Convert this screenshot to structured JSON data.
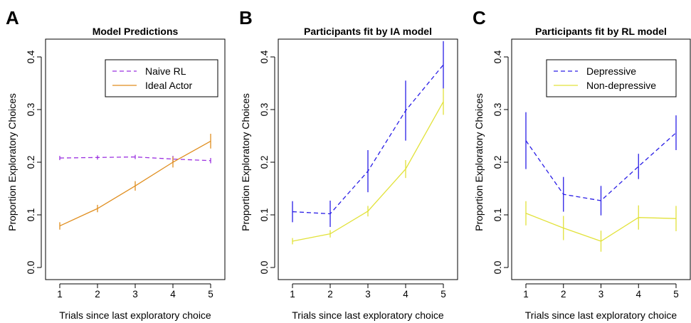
{
  "chart_data": [
    {
      "panel_letter": "A",
      "type": "line",
      "title": "Model Predictions",
      "xlabel": "Trials since last exploratory choice",
      "ylabel": "Proportion Exploratory Choices",
      "x": [
        1,
        2,
        3,
        4,
        5
      ],
      "xticks": [
        "1",
        "2",
        "3",
        "4",
        "5"
      ],
      "ylim": [
        0.0,
        0.4
      ],
      "yticks": [
        "0.0",
        "0.1",
        "0.2",
        "0.3",
        "0.4"
      ],
      "legend": "top-right",
      "series": [
        {
          "name": "Naive RL",
          "color": "#9b30e0",
          "dash": "dashed",
          "values": [
            0.208,
            0.209,
            0.21,
            0.206,
            0.203
          ],
          "err": [
            0.004,
            0.004,
            0.004,
            0.006,
            0.005
          ]
        },
        {
          "name": "Ideal Actor",
          "color": "#e08e1f",
          "dash": "solid",
          "values": [
            0.079,
            0.112,
            0.155,
            0.2,
            0.24
          ],
          "err": [
            0.007,
            0.007,
            0.009,
            0.01,
            0.014
          ]
        }
      ]
    },
    {
      "panel_letter": "B",
      "type": "line",
      "title": "Participants fit by IA model",
      "xlabel": "Trials since last exploratory choice",
      "ylabel": "Proportion Exploratory Choices",
      "x": [
        1,
        2,
        3,
        4,
        5
      ],
      "xticks": [
        "1",
        "2",
        "3",
        "4",
        "5"
      ],
      "ylim": [
        0.0,
        0.4
      ],
      "yticks": [
        "0.0",
        "0.1",
        "0.2",
        "0.3",
        "0.4"
      ],
      "legend": "none",
      "series": [
        {
          "name": "",
          "color": "#2a1ee6",
          "dash": "dashed",
          "values": [
            0.106,
            0.102,
            0.183,
            0.298,
            0.385
          ],
          "err": [
            0.02,
            0.025,
            0.04,
            0.057,
            0.045
          ]
        },
        {
          "name": "",
          "color": "#e2e23a",
          "dash": "solid",
          "values": [
            0.05,
            0.064,
            0.107,
            0.187,
            0.315
          ],
          "err": [
            0.006,
            0.007,
            0.01,
            0.017,
            0.025
          ]
        }
      ]
    },
    {
      "panel_letter": "C",
      "type": "line",
      "title": "Participants fit by RL model",
      "xlabel": "Trials since last exploratory choice",
      "ylabel": "Proportion Exploratory Choices",
      "x": [
        1,
        2,
        3,
        4,
        5
      ],
      "xticks": [
        "1",
        "2",
        "3",
        "4",
        "5"
      ],
      "ylim": [
        0.0,
        0.4
      ],
      "yticks": [
        "0.0",
        "0.1",
        "0.2",
        "0.3",
        "0.4"
      ],
      "legend": "top-right",
      "series": [
        {
          "name": "Depressive",
          "color": "#2a1ee6",
          "dash": "dashed",
          "values": [
            0.241,
            0.139,
            0.127,
            0.192,
            0.256
          ],
          "err": [
            0.054,
            0.033,
            0.028,
            0.024,
            0.033
          ]
        },
        {
          "name": "Non-depressive",
          "color": "#e2e23a",
          "dash": "solid",
          "values": [
            0.103,
            0.075,
            0.05,
            0.095,
            0.093
          ],
          "err": [
            0.023,
            0.023,
            0.02,
            0.023,
            0.024
          ]
        }
      ]
    }
  ]
}
